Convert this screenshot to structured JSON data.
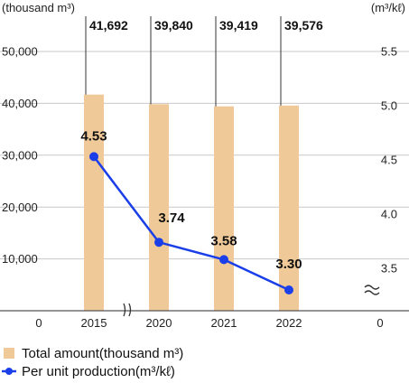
{
  "chart_data": {
    "type": "bar+line",
    "categories": [
      "2015",
      "2020",
      "2021",
      "2022"
    ],
    "series": [
      {
        "name": "Total amount(thousand m³)",
        "type": "bar",
        "axis": "left",
        "values": [
          41692,
          39840,
          39419,
          39576
        ],
        "value_labels": [
          "41,692",
          "39,840",
          "39,419",
          "39,576"
        ],
        "color": "#f0c998"
      },
      {
        "name": "Per unit production(m³/kℓ)",
        "type": "line",
        "axis": "right",
        "values": [
          4.53,
          3.74,
          3.58,
          3.3
        ],
        "value_labels": [
          "4.53",
          "3.74",
          "3.58",
          "3.30"
        ],
        "color": "#1a3ee8"
      }
    ],
    "left_axis": {
      "unit": "(thousand m³)",
      "ticks": [
        0,
        10000,
        20000,
        30000,
        40000,
        50000
      ],
      "tick_labels": [
        "0",
        "10,000",
        "20,000",
        "30,000",
        "40,000",
        "50,000"
      ],
      "range": [
        0,
        55000
      ]
    },
    "right_axis": {
      "unit": "(m³/kℓ)",
      "ticks": [
        3.5,
        4.0,
        4.5,
        5.0,
        5.5
      ],
      "tick_labels": [
        "3.5",
        "4.0",
        "4.5",
        "5.0",
        "5.5"
      ],
      "zero_label": "0",
      "broken_below": 3.5,
      "range": [
        3.0,
        5.5
      ]
    },
    "x_axis_break_between": [
      "2015",
      "2020"
    ],
    "grid": "horizontal",
    "legend_position": "bottom-left"
  }
}
